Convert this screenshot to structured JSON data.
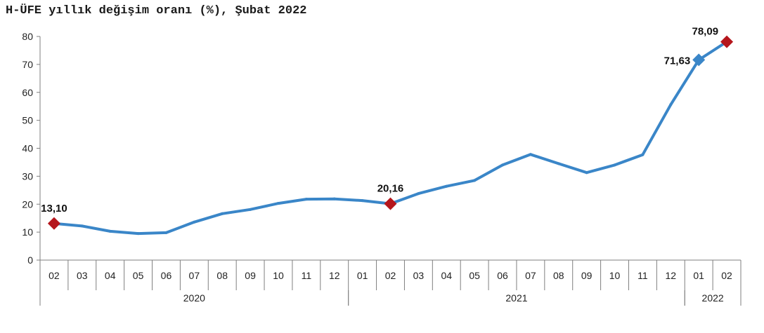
{
  "chart_data": {
    "type": "line",
    "title": "H-ÜFE yıllık değişim oranı (%), Şubat 2022",
    "categories": [
      "02",
      "03",
      "04",
      "05",
      "06",
      "07",
      "08",
      "09",
      "10",
      "11",
      "12",
      "01",
      "02",
      "03",
      "04",
      "05",
      "06",
      "07",
      "08",
      "09",
      "10",
      "11",
      "12",
      "01",
      "02"
    ],
    "year_groups": [
      {
        "label": "2020",
        "start": 0,
        "end": 10
      },
      {
        "label": "2021",
        "start": 11,
        "end": 22
      },
      {
        "label": "2022",
        "start": 23,
        "end": 24
      }
    ],
    "series": [
      {
        "values": [
          13.1,
          12.2,
          10.3,
          9.5,
          9.8,
          13.6,
          16.6,
          18.1,
          20.3,
          21.8,
          21.9,
          21.3,
          20.16,
          23.8,
          26.4,
          28.5,
          34.0,
          37.8,
          34.5,
          31.3,
          34.0,
          37.7,
          55.6,
          71.63,
          78.09
        ],
        "color": "#3a86c8"
      }
    ],
    "highlighted_points": [
      {
        "index": 0,
        "label": "13,10",
        "marker_color": "#b5161c"
      },
      {
        "index": 12,
        "label": "20,16",
        "marker_color": "#b5161c"
      },
      {
        "index": 23,
        "label": "71,63",
        "marker_color": "#3a86c8"
      },
      {
        "index": 24,
        "label": "78,09",
        "marker_color": "#b5161c"
      }
    ],
    "ylim": [
      0,
      80
    ],
    "yticks": [
      0,
      10,
      20,
      30,
      40,
      50,
      60,
      70,
      80
    ],
    "grid": false,
    "legend": false
  }
}
